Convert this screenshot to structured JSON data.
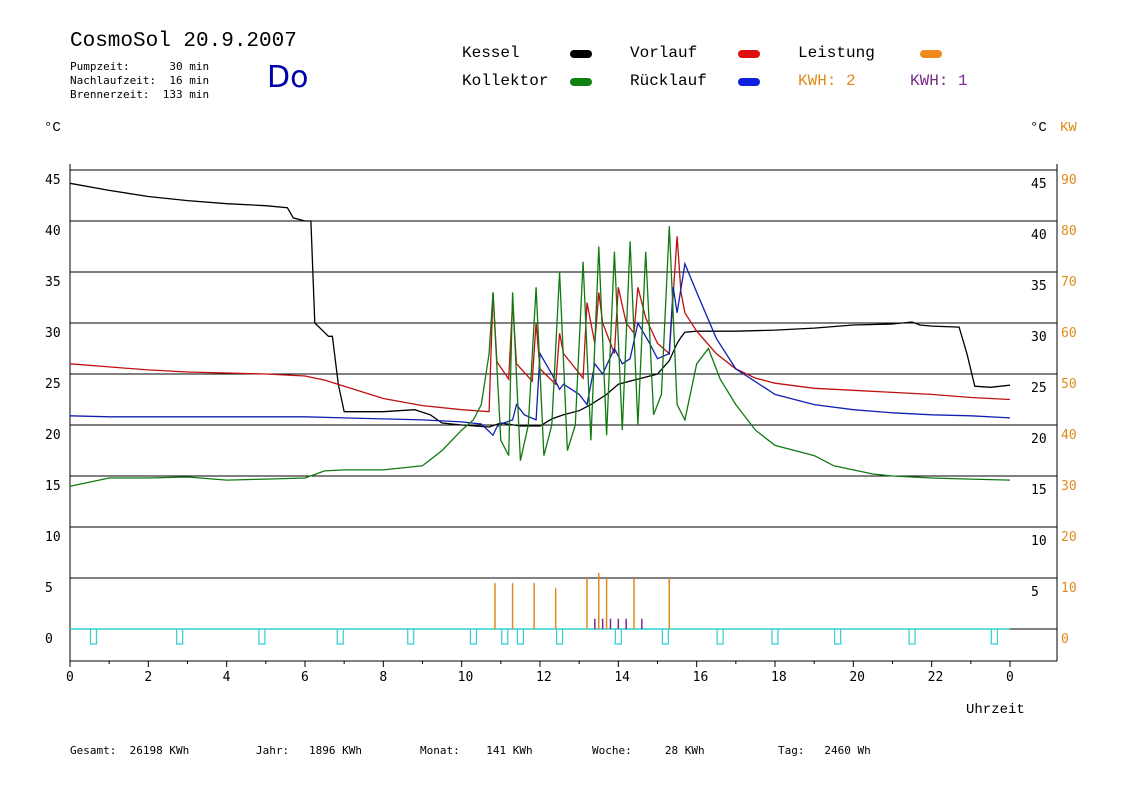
{
  "header": {
    "title": "CosmoSol 20.9.2007",
    "pumpzeit": "Pumpzeit:      30 min",
    "nachlaufzeit": "Nachlaufzeit:  16 min",
    "brennerzeit": "Brennerzeit:  133 min",
    "day": "Do"
  },
  "legend": {
    "kessel": {
      "label": "Kessel",
      "color": "#000000"
    },
    "vorlauf": {
      "label": "Vorlauf",
      "color": "#e01010"
    },
    "leistung": {
      "label": "Leistung",
      "color": "#f08a1a"
    },
    "kollektor": {
      "label": "Kollektor",
      "color": "#108010"
    },
    "ruecklauf": {
      "label": "Rücklauf",
      "color": "#1020e0"
    },
    "kwh2": {
      "label": "KWH: 2",
      "color": "#e08a1a"
    },
    "kwh1": {
      "label": "KWH: 1",
      "color": "#7a2a8a"
    }
  },
  "axes": {
    "left_unit": "°C",
    "right_unit_c": "°C",
    "right_unit_kw": "KW",
    "x_label": "Uhrzeit"
  },
  "footer": {
    "gesamt": "Gesamt:  26198 KWh",
    "jahr": "Jahr:   1896 KWh",
    "monat": "Monat:    141 KWh",
    "woche": "Woche:     28 KWh",
    "tag": "Tag:   2460 Wh"
  },
  "chart_data": {
    "type": "line",
    "xlabel": "Uhrzeit",
    "ylabel": "°C",
    "xlim": [
      0,
      24
    ],
    "ylim": [
      0,
      45
    ],
    "y2lim": [
      0,
      90
    ],
    "y2label": "KW",
    "grid": true,
    "x_ticks": [
      "0",
      "2",
      "4",
      "6",
      "8",
      "10",
      "12",
      "14",
      "16",
      "18",
      "20",
      "22",
      "0"
    ],
    "y_ticks": [
      0,
      5,
      10,
      15,
      20,
      25,
      30,
      35,
      40,
      45
    ],
    "y2_ticks": [
      0,
      10,
      20,
      30,
      40,
      50,
      60,
      70,
      80,
      90
    ],
    "series": [
      {
        "name": "Kessel",
        "color": "#000000",
        "x": [
          0,
          1,
          2,
          3,
          4,
          5,
          5.55,
          5.7,
          6.0,
          6.15,
          6.25,
          6.6,
          6.7,
          6.85,
          7.0,
          8.0,
          8.8,
          9.2,
          9.5,
          10.0,
          10.7,
          11.0,
          11.5,
          12.0,
          12.3,
          12.6,
          13.0,
          13.3,
          13.7,
          14.0,
          14.5,
          15.0,
          15.3,
          15.5,
          15.6,
          15.7,
          16.0,
          17.0,
          18.0,
          19.0,
          20.0,
          21.0,
          21.5,
          21.7,
          22.0,
          22.7,
          22.9,
          23.1,
          23.5,
          24.0
        ],
        "y": [
          43.7,
          43.0,
          42.4,
          42.0,
          41.7,
          41.5,
          41.3,
          40.3,
          40.0,
          40.0,
          30.0,
          28.7,
          28.7,
          24.0,
          21.3,
          21.3,
          21.5,
          21.0,
          20.2,
          20.0,
          19.8,
          20.2,
          19.9,
          19.9,
          20.6,
          21.0,
          21.4,
          22.0,
          23.0,
          24.0,
          24.5,
          25.0,
          26.3,
          28.0,
          28.6,
          29.1,
          29.2,
          29.2,
          29.3,
          29.5,
          29.8,
          29.9,
          30.1,
          29.8,
          29.7,
          29.6,
          27.0,
          23.8,
          23.7,
          23.9
        ]
      },
      {
        "name": "Vorlauf",
        "color": "#c01010",
        "x": [
          0,
          1,
          2,
          3,
          4,
          5,
          6,
          6.5,
          7,
          7.5,
          8,
          9,
          10,
          10.7,
          10.8,
          10.9,
          11.2,
          11.3,
          11.4,
          11.8,
          11.9,
          12.0,
          12.4,
          12.5,
          12.6,
          13.1,
          13.2,
          13.4,
          13.5,
          13.6,
          13.9,
          14.0,
          14.2,
          14.4,
          14.5,
          14.7,
          15.0,
          15.3,
          15.5,
          15.6,
          15.7,
          16.0,
          16.5,
          17.0,
          17.5,
          18,
          19,
          20,
          21,
          22,
          23,
          24
        ],
        "y": [
          26.0,
          25.7,
          25.4,
          25.2,
          25.1,
          25.0,
          24.8,
          24.4,
          23.8,
          23.2,
          22.6,
          21.9,
          21.5,
          21.3,
          33.0,
          26.2,
          24.5,
          32.0,
          26.0,
          24.3,
          30.0,
          25.5,
          24.0,
          29.0,
          27.0,
          24.6,
          32.0,
          28.0,
          33.0,
          30.0,
          27.0,
          33.5,
          30.0,
          29.0,
          33.5,
          30.5,
          28.0,
          27.0,
          38.5,
          33.0,
          31.0,
          29.2,
          27.0,
          25.5,
          24.6,
          24.1,
          23.6,
          23.4,
          23.2,
          23.0,
          22.7,
          22.5
        ]
      },
      {
        "name": "Rücklauf",
        "color": "#1020b0",
        "x": [
          0,
          1,
          2,
          3,
          4,
          5,
          6,
          7,
          8,
          9,
          10,
          10.5,
          10.8,
          10.9,
          11.0,
          11.3,
          11.4,
          11.6,
          11.9,
          12.0,
          12.3,
          12.5,
          12.6,
          13.0,
          13.2,
          13.4,
          13.6,
          13.9,
          14.1,
          14.3,
          14.5,
          14.8,
          15.0,
          15.3,
          15.4,
          15.5,
          15.7,
          16.0,
          16.5,
          17,
          18,
          19,
          20,
          21,
          22,
          23,
          24
        ],
        "y": [
          20.9,
          20.8,
          20.8,
          20.8,
          20.8,
          20.8,
          20.8,
          20.7,
          20.6,
          20.5,
          20.3,
          20.1,
          19.0,
          19.8,
          20.1,
          20.5,
          22.0,
          21.0,
          20.5,
          27.0,
          25.0,
          23.5,
          24.0,
          23.0,
          22.0,
          26.0,
          25.0,
          27.5,
          26.0,
          26.5,
          30.0,
          28.0,
          26.5,
          27.0,
          33.5,
          31.0,
          35.8,
          33.0,
          28.5,
          25.5,
          23.0,
          22.0,
          21.5,
          21.2,
          21.0,
          20.9,
          20.7
        ]
      },
      {
        "name": "Kollektor",
        "color": "#107a10",
        "x": [
          0,
          1,
          2,
          3,
          4,
          5,
          6,
          6.5,
          7,
          8,
          9,
          9.5,
          10,
          10.3,
          10.5,
          10.7,
          10.8,
          11.0,
          11.2,
          11.3,
          11.5,
          11.7,
          11.9,
          12.1,
          12.3,
          12.5,
          12.7,
          12.9,
          13.1,
          13.3,
          13.5,
          13.7,
          13.9,
          14.1,
          14.3,
          14.5,
          14.7,
          14.9,
          15.1,
          15.3,
          15.5,
          15.7,
          16.0,
          16.3,
          16.6,
          17.0,
          17.5,
          18.0,
          18.5,
          19.0,
          19.5,
          20.0,
          20.5,
          21,
          22,
          23,
          24
        ],
        "y": [
          14.0,
          14.8,
          14.8,
          14.9,
          14.6,
          14.7,
          14.8,
          15.5,
          15.6,
          15.6,
          16.0,
          17.5,
          19.5,
          20.5,
          22.0,
          27.0,
          33.0,
          18.5,
          17.0,
          33.0,
          16.5,
          20.0,
          33.5,
          17.0,
          20.0,
          35.0,
          17.5,
          20.0,
          36.0,
          18.5,
          37.5,
          19.0,
          37.0,
          19.5,
          38.0,
          20.0,
          37.0,
          21.0,
          23.0,
          39.5,
          22.0,
          20.5,
          26.0,
          27.5,
          24.5,
          22.0,
          19.5,
          18.0,
          17.5,
          17.0,
          16.0,
          15.6,
          15.2,
          15.0,
          14.8,
          14.7,
          14.6
        ]
      }
    ],
    "power_series": [
      {
        "name": "KWH: 2",
        "color": "#e08a1a",
        "x": [
          10.85,
          11.3,
          11.85,
          12.4,
          13.2,
          13.5,
          13.7,
          14.4,
          15.3
        ],
        "y2": [
          9,
          9,
          9,
          8,
          10,
          11,
          10,
          10,
          10
        ]
      },
      {
        "name": "KWH: 1",
        "color": "#7a2a8a",
        "x": [
          13.4,
          13.6,
          13.8,
          14.0,
          14.2,
          14.6
        ],
        "y2": [
          2,
          2,
          2,
          2,
          2,
          2
        ]
      }
    ],
    "pump_markers_x": [
      0.6,
      2.8,
      4.9,
      6.9,
      8.7,
      10.3,
      11.1,
      11.5,
      12.5,
      14.0,
      15.2,
      16.6,
      18.0,
      19.6,
      21.5,
      23.6
    ]
  }
}
